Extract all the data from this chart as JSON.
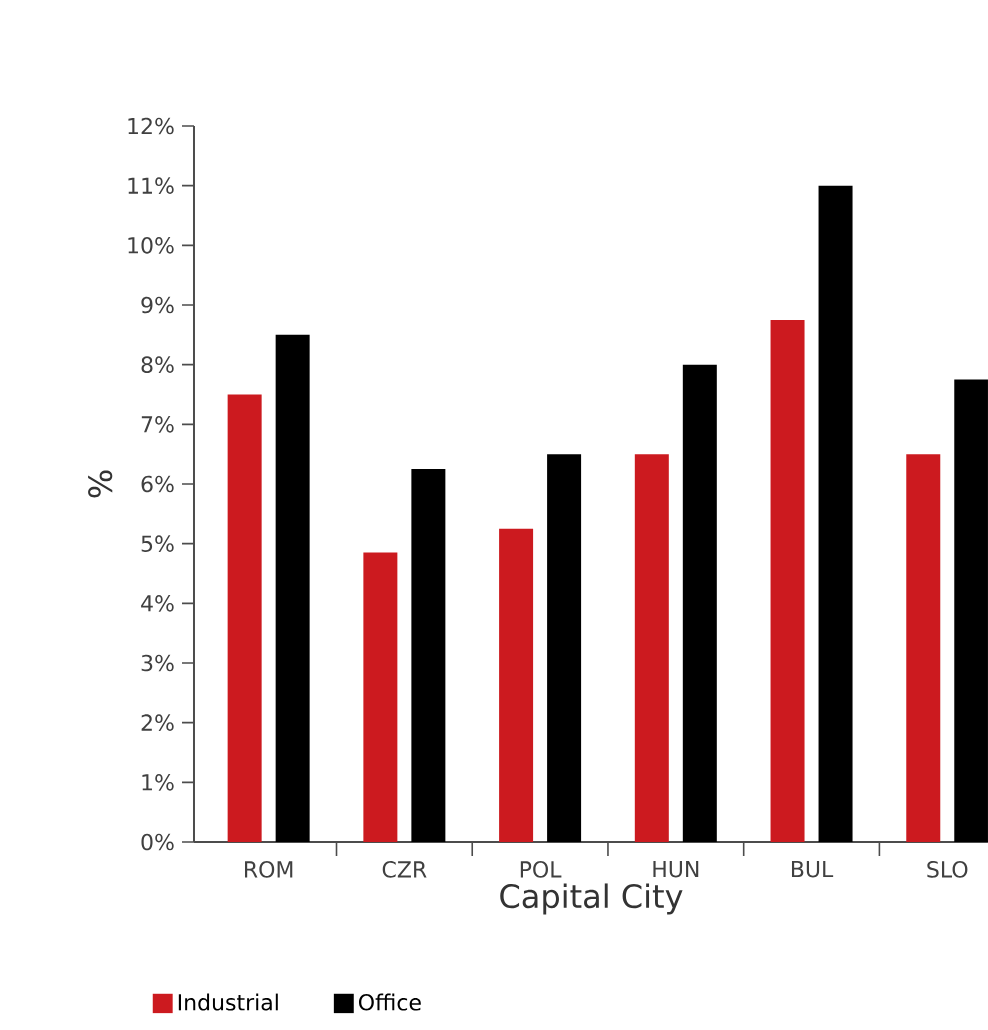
{
  "chart_data": {
    "type": "bar",
    "xlabel": "Capital City",
    "ylabel": "%",
    "categories": [
      "ROM",
      "CZR",
      "POL",
      "HUN",
      "BUL",
      "SLO"
    ],
    "series": [
      {
        "name": "Industrial",
        "color": "#cc1a1f",
        "values": [
          7.5,
          4.85,
          5.25,
          6.5,
          8.75,
          6.5
        ]
      },
      {
        "name": "Office",
        "color": "#000000",
        "values": [
          8.5,
          6.25,
          6.5,
          8.0,
          11.0,
          7.75
        ]
      }
    ],
    "ylim": [
      0,
      12
    ],
    "yticks": [
      {
        "value": 0,
        "label": "0%"
      },
      {
        "value": 1,
        "label": "1%"
      },
      {
        "value": 2,
        "label": "2%"
      },
      {
        "value": 3,
        "label": "3%"
      },
      {
        "value": 4,
        "label": "4%"
      },
      {
        "value": 5,
        "label": "5%"
      },
      {
        "value": 6,
        "label": "6%"
      },
      {
        "value": 7,
        "label": "7%"
      },
      {
        "value": 8,
        "label": "8%"
      },
      {
        "value": 9,
        "label": "9%"
      },
      {
        "value": 10,
        "label": "10%"
      },
      {
        "value": 11,
        "label": "11%"
      },
      {
        "value": 12,
        "label": "12%"
      }
    ],
    "grid": false,
    "legend": "bottom left"
  }
}
